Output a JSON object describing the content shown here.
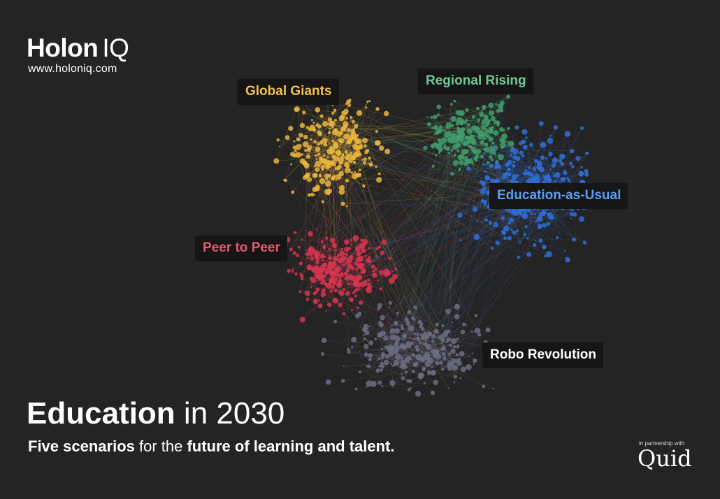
{
  "brand": {
    "logo_main": "Holon",
    "logo_suffix": "IQ",
    "url": "www.holoniq.com"
  },
  "clusters": [
    {
      "key": "global",
      "label": "Global Giants",
      "color": "#f2c14e"
    },
    {
      "key": "regional",
      "label": "Regional Rising",
      "color": "#71c79c"
    },
    {
      "key": "edu",
      "label": "Education-as-Usual",
      "color": "#5b9cf5"
    },
    {
      "key": "peer",
      "label": "Peer to Peer",
      "color": "#e4596e"
    },
    {
      "key": "robo",
      "label": "Robo Revolution",
      "color": "#ffffff"
    }
  ],
  "node_colors": {
    "global": "#e8b53e",
    "regional": "#3f9e6b",
    "edu": "#2f6fd8",
    "peer": "#d8344f",
    "robo": "#6c6c80"
  },
  "title": {
    "strong": "Education",
    "light": " in 2030"
  },
  "subtitle": {
    "part1_strong": "Five scenarios",
    "part2_light": " for the ",
    "part3_strong": "future of learning and talent."
  },
  "partner": {
    "note": "in partnership with",
    "logo": "Quid"
  }
}
